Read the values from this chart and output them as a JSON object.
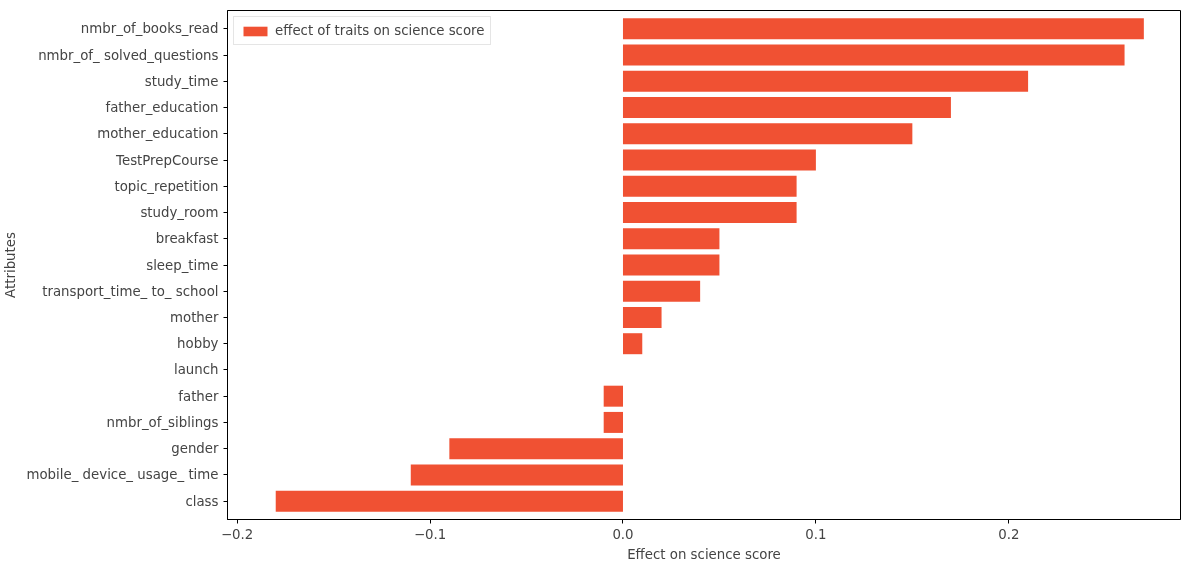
{
  "chart_data": {
    "type": "bar",
    "orientation": "horizontal",
    "xlabel": "Effect on science score",
    "ylabel": "Attributes",
    "categories": [
      "nmbr_of_books_read",
      "nmbr_of_ solved_questions",
      "study_time",
      "father_education",
      "mother_education",
      "TestPrepCourse",
      "topic_repetition",
      "study_room",
      "breakfast",
      "sleep_time",
      "transport_time_ to_ school",
      "mother",
      "hobby",
      "launch",
      "father",
      "nmbr_of_siblings",
      "gender",
      "mobile_ device_ usage_ time",
      "class"
    ],
    "series": [
      {
        "name": "effect of traits on science score",
        "color": "#f05133",
        "values": [
          0.27,
          0.26,
          0.21,
          0.17,
          0.15,
          0.1,
          0.09,
          0.09,
          0.05,
          0.05,
          0.04,
          0.02,
          0.01,
          0,
          -0.01,
          -0.01,
          -0.09,
          -0.11,
          -0.18
        ]
      }
    ],
    "xlim": [
      -0.205,
      0.289
    ],
    "xticks": [
      {
        "value": -0.2,
        "label": "−0.2"
      },
      {
        "value": -0.1,
        "label": "−0.1"
      },
      {
        "value": 0,
        "label": "0.0"
      },
      0.1,
      0.2
    ],
    "legend": "top left",
    "grid": false
  }
}
